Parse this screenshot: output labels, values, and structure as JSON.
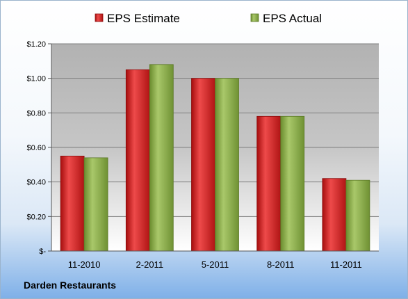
{
  "company": "Darden Restaurants",
  "chart_data": {
    "type": "bar",
    "categories": [
      "11-2010",
      "2-2011",
      "5-2011",
      "8-2011",
      "11-2011"
    ],
    "series": [
      {
        "name": "EPS Estimate",
        "values": [
          0.55,
          1.05,
          1.0,
          0.78,
          0.42
        ],
        "color": "#d42020"
      },
      {
        "name": "EPS Actual",
        "values": [
          0.54,
          1.08,
          1.0,
          0.78,
          0.41
        ],
        "color": "#8bad4a"
      }
    ],
    "ylim": [
      0,
      1.2
    ],
    "yticks": [
      0,
      0.2,
      0.4,
      0.6,
      0.8,
      1.0,
      1.2
    ],
    "ytick_labels": [
      "$-",
      "$0.20",
      "$0.40",
      "$0.60",
      "$0.80",
      "$1.00",
      "$1.20"
    ],
    "grid": true,
    "legend_position": "top"
  }
}
